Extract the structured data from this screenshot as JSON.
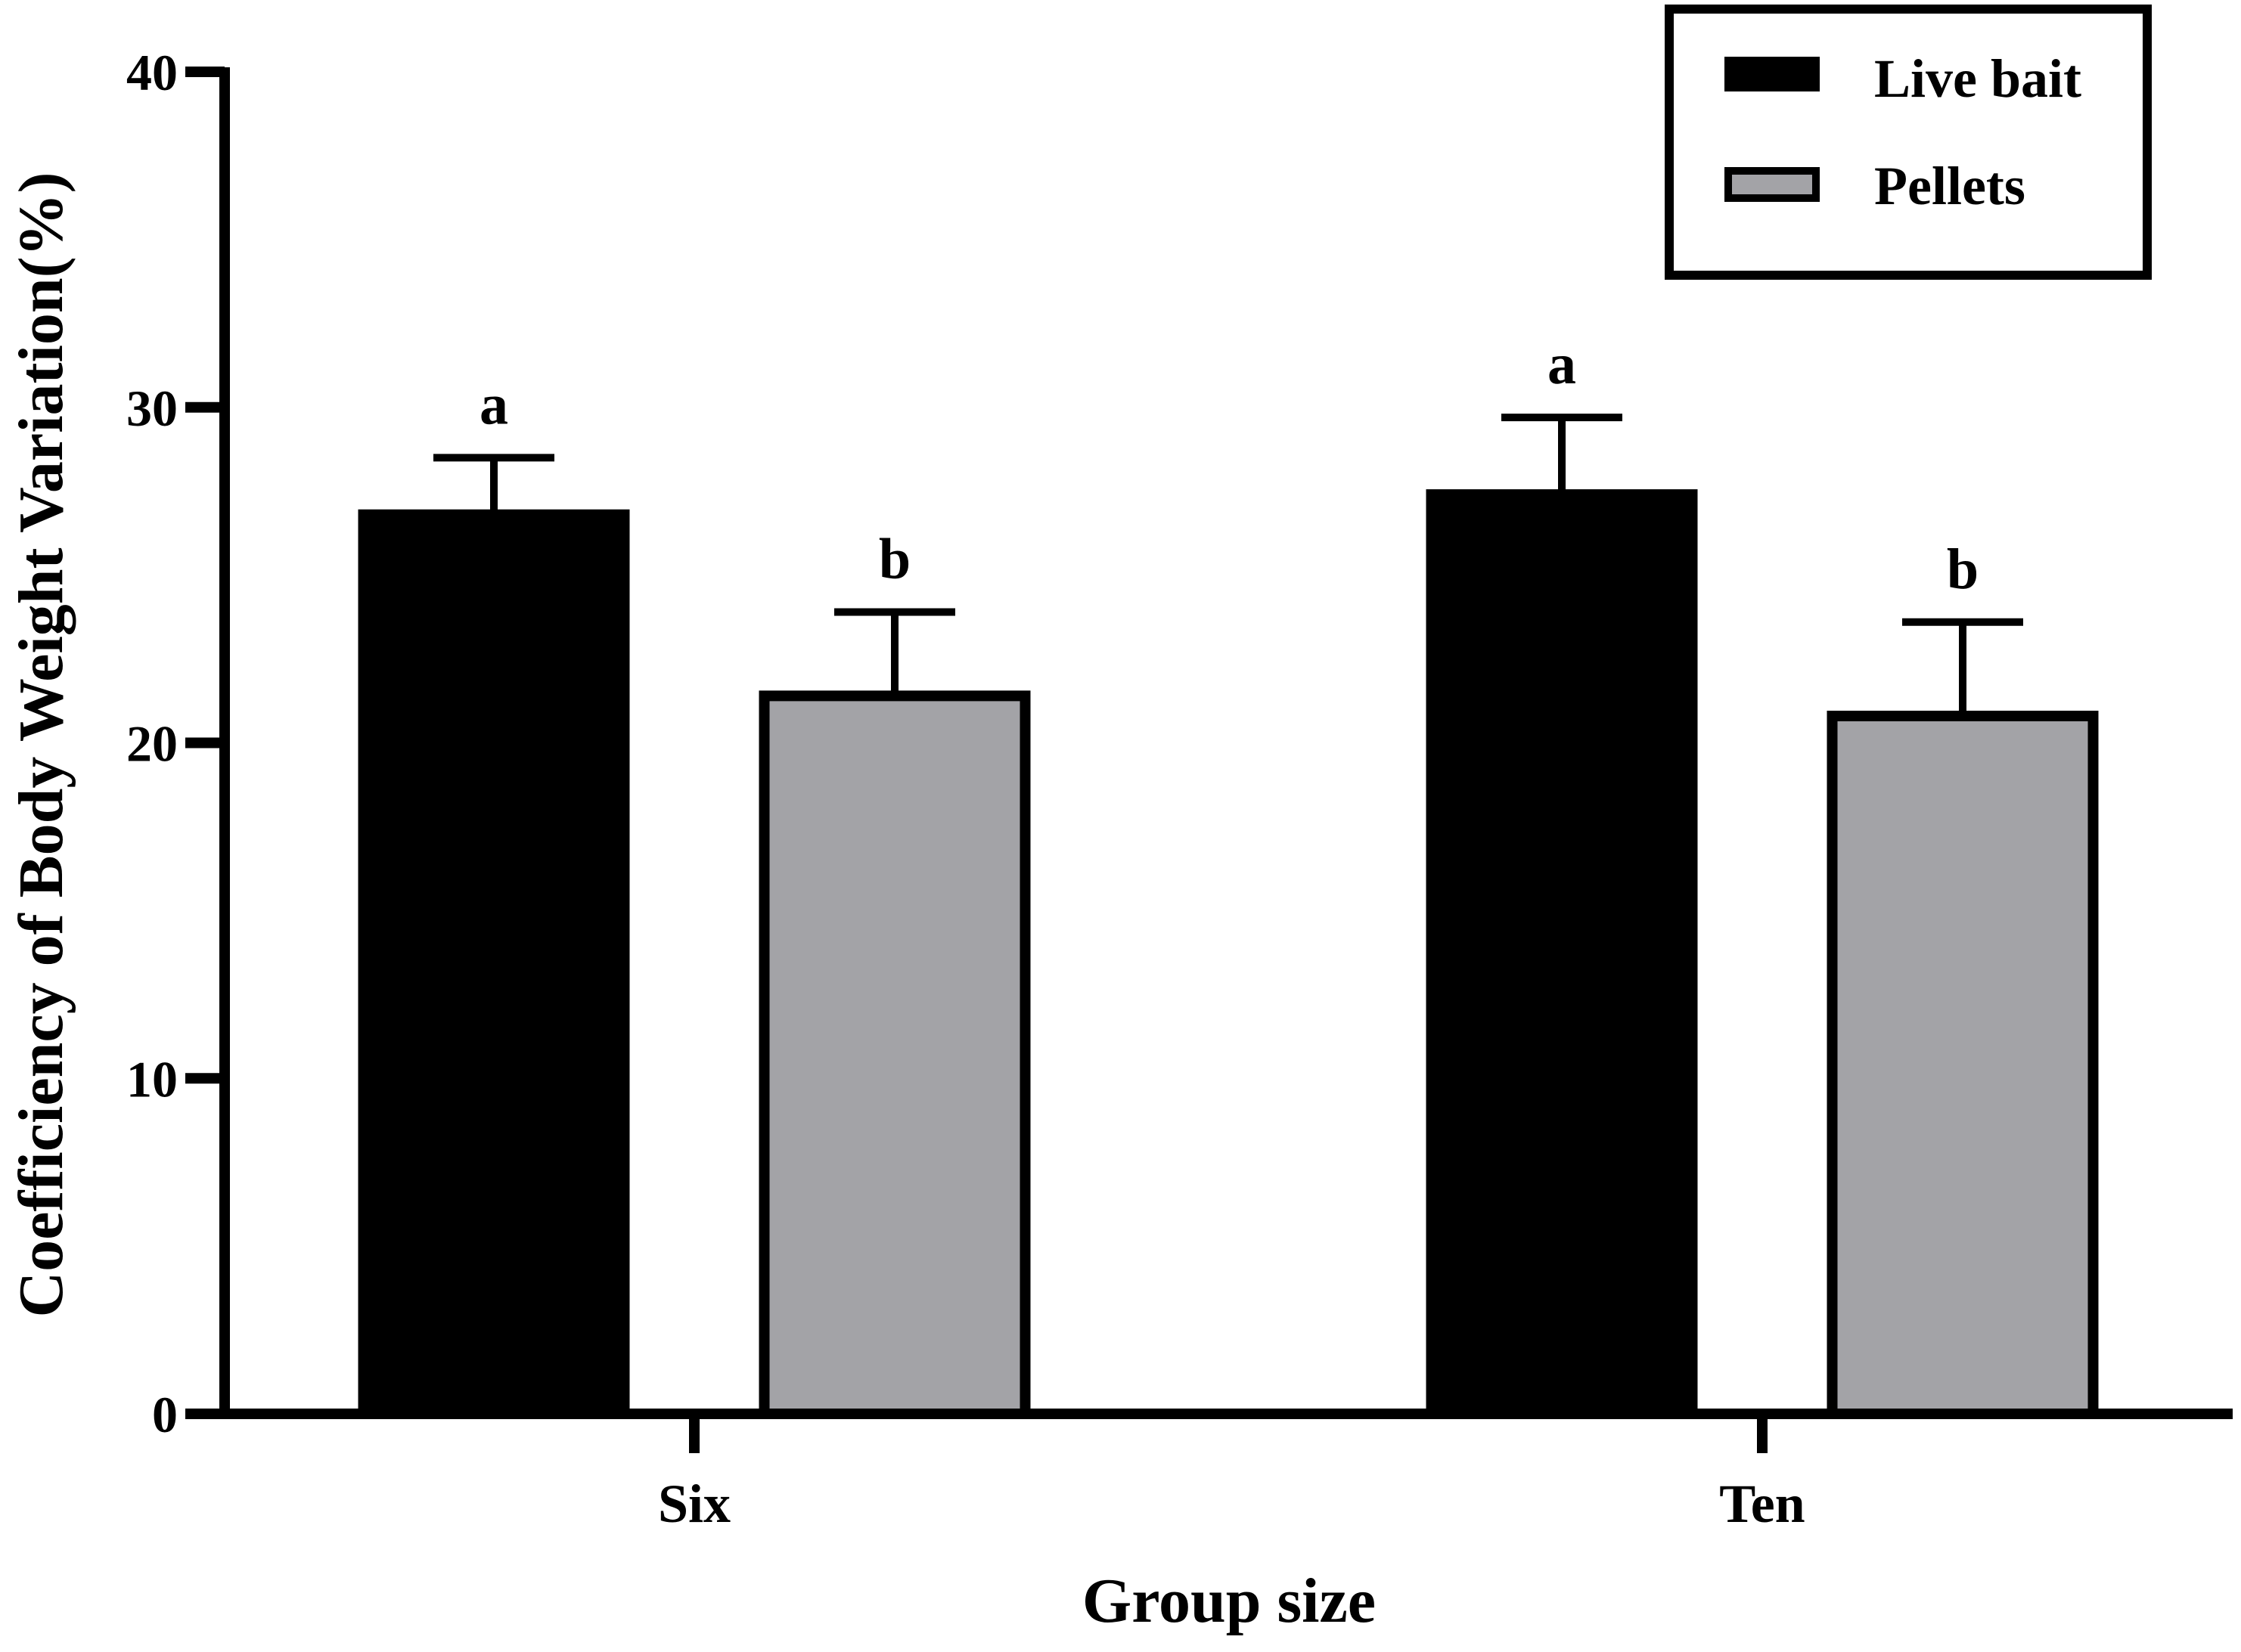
{
  "chart_data": {
    "type": "bar",
    "title": "",
    "xlabel": "Group size",
    "ylabel": "Coefficiency of Body Weight  Variation(%)",
    "categories": [
      "Six",
      "Ten"
    ],
    "ylim": [
      0,
      40
    ],
    "yticks": [
      0,
      10,
      20,
      30,
      40
    ],
    "grid": false,
    "legend_position": "top-right",
    "series": [
      {
        "name": "Live bait",
        "color": "#000000",
        "values": [
          26.8,
          27.4
        ],
        "errors": [
          1.7,
          2.3
        ],
        "labels": [
          "a",
          "a"
        ]
      },
      {
        "name": "Pellets",
        "color": "#a3a3a7",
        "values": [
          21.4,
          20.8
        ],
        "errors": [
          2.5,
          2.8
        ],
        "labels": [
          "b",
          "b"
        ]
      }
    ]
  }
}
